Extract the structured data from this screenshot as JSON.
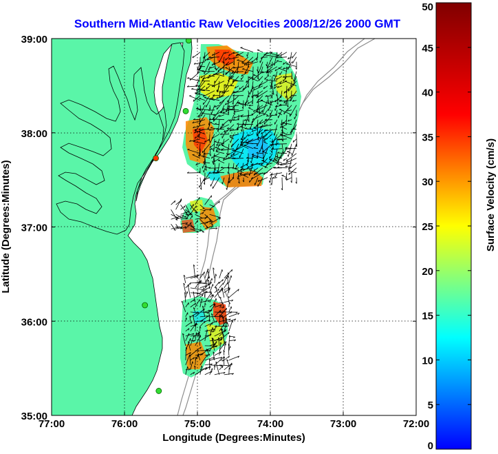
{
  "chart_data": {
    "type": "heatmap",
    "title": "Southern Mid-Atlantic Raw Velocities 2008/12/26 2000 GMT",
    "xlabel": "Longitude (Degrees:Minutes)",
    "ylabel": "Latitude (Degrees:Minutes)",
    "xlim": [
      -77,
      -72
    ],
    "ylim": [
      35,
      39
    ],
    "x_ticks": [
      {
        "value": -77,
        "label": "77:00"
      },
      {
        "value": -76,
        "label": "76:00"
      },
      {
        "value": -75,
        "label": "75:00"
      },
      {
        "value": -74,
        "label": "74:00"
      },
      {
        "value": -73,
        "label": "73:00"
      },
      {
        "value": -72,
        "label": "72:00"
      }
    ],
    "y_ticks": [
      {
        "value": 39,
        "label": "39:00"
      },
      {
        "value": 38,
        "label": "38:00"
      },
      {
        "value": 37,
        "label": "37:00"
      },
      {
        "value": 36,
        "label": "36:00"
      },
      {
        "value": 35,
        "label": "35:00"
      }
    ],
    "grid": true,
    "colorbar": {
      "label": "Surface Velocity (cm/s)",
      "range": [
        0,
        50
      ],
      "ticks": [
        0,
        5,
        10,
        15,
        20,
        25,
        30,
        35,
        40,
        45,
        50
      ]
    },
    "colors": {
      "land": "#5af5a8",
      "title": "#0000ff",
      "bathymetry": "#8c8c8c",
      "station": "#33dd33",
      "station_alt": "#ff3300"
    },
    "stations": [
      {
        "lon": -75.12,
        "lat": 38.98,
        "status": "active"
      },
      {
        "lon": -75.16,
        "lat": 38.23,
        "status": "active"
      },
      {
        "lon": -75.57,
        "lat": 37.73,
        "status": "other"
      },
      {
        "lon": -75.72,
        "lat": 36.17,
        "status": "active"
      },
      {
        "lon": -75.53,
        "lat": 35.26,
        "status": "active"
      }
    ],
    "velocity_patches": [
      {
        "region": "north",
        "lon": [
          -75.0,
          -73.6
        ],
        "lat": [
          37.5,
          38.9
        ],
        "speed_cm_s": [
          5,
          40
        ],
        "mean_direction": "southwest"
      },
      {
        "region": "mouth",
        "lon": [
          -75.4,
          -74.8
        ],
        "lat": [
          36.93,
          37.28
        ],
        "speed_cm_s": [
          20,
          40
        ],
        "mean_direction": "east"
      },
      {
        "region": "south",
        "lon": [
          -75.2,
          -74.5
        ],
        "lat": [
          35.4,
          36.5
        ],
        "speed_cm_s": [
          15,
          40
        ],
        "mean_direction": "northeast"
      }
    ]
  }
}
